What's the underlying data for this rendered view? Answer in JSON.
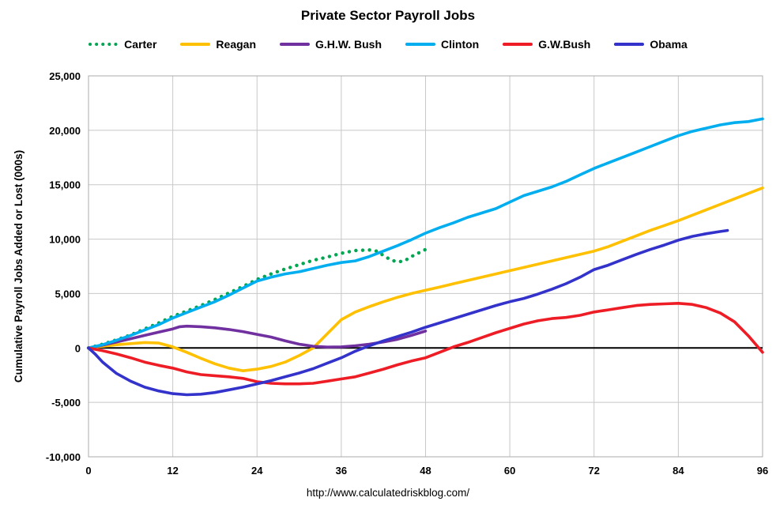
{
  "footer": {
    "url": "http://www.calculatedriskblog.com/"
  },
  "chart_data": {
    "type": "line",
    "title": "Private Sector Payroll Jobs",
    "xlabel": "",
    "ylabel": "Cumulative Payroll Jobs Added or  Lost (000s)",
    "xlim": [
      0,
      96
    ],
    "ylim": [
      -10000,
      25000
    ],
    "xticks": [
      0,
      12,
      24,
      36,
      48,
      60,
      72,
      84,
      96
    ],
    "yticks": [
      -10000,
      -5000,
      0,
      5000,
      10000,
      15000,
      20000,
      25000
    ],
    "grid": true,
    "legend_position": "top",
    "zero_line_color": "#000000",
    "grid_color": "#c8c8c8",
    "series": [
      {
        "name": "Carter",
        "color": "#00A651",
        "style": "dotted",
        "points": [
          [
            0,
            0
          ],
          [
            2,
            350
          ],
          [
            4,
            750
          ],
          [
            6,
            1200
          ],
          [
            8,
            1750
          ],
          [
            10,
            2300
          ],
          [
            12,
            2900
          ],
          [
            14,
            3400
          ],
          [
            16,
            3900
          ],
          [
            18,
            4450
          ],
          [
            20,
            5050
          ],
          [
            22,
            5650
          ],
          [
            24,
            6300
          ],
          [
            26,
            6800
          ],
          [
            28,
            7250
          ],
          [
            30,
            7650
          ],
          [
            32,
            8050
          ],
          [
            34,
            8350
          ],
          [
            36,
            8700
          ],
          [
            38,
            8950
          ],
          [
            40,
            9000
          ],
          [
            41,
            8900
          ],
          [
            43,
            8100
          ],
          [
            44,
            7900
          ],
          [
            45,
            8000
          ],
          [
            46,
            8400
          ],
          [
            48,
            9050
          ]
        ]
      },
      {
        "name": "Reagan",
        "color": "#FFC000",
        "style": "solid",
        "points": [
          [
            0,
            0
          ],
          [
            2,
            150
          ],
          [
            4,
            300
          ],
          [
            6,
            400
          ],
          [
            8,
            500
          ],
          [
            10,
            450
          ],
          [
            12,
            100
          ],
          [
            14,
            -400
          ],
          [
            16,
            -950
          ],
          [
            18,
            -1450
          ],
          [
            20,
            -1850
          ],
          [
            22,
            -2100
          ],
          [
            24,
            -1950
          ],
          [
            26,
            -1700
          ],
          [
            28,
            -1300
          ],
          [
            30,
            -700
          ],
          [
            32,
            0
          ],
          [
            34,
            1300
          ],
          [
            36,
            2600
          ],
          [
            38,
            3300
          ],
          [
            40,
            3800
          ],
          [
            42,
            4250
          ],
          [
            44,
            4650
          ],
          [
            46,
            5000
          ],
          [
            48,
            5300
          ],
          [
            50,
            5600
          ],
          [
            52,
            5900
          ],
          [
            54,
            6200
          ],
          [
            56,
            6500
          ],
          [
            58,
            6800
          ],
          [
            60,
            7100
          ],
          [
            62,
            7400
          ],
          [
            64,
            7700
          ],
          [
            66,
            8000
          ],
          [
            68,
            8300
          ],
          [
            70,
            8600
          ],
          [
            72,
            8900
          ],
          [
            74,
            9300
          ],
          [
            76,
            9800
          ],
          [
            78,
            10300
          ],
          [
            80,
            10800
          ],
          [
            82,
            11250
          ],
          [
            84,
            11700
          ],
          [
            86,
            12200
          ],
          [
            88,
            12700
          ],
          [
            90,
            13200
          ],
          [
            92,
            13700
          ],
          [
            94,
            14200
          ],
          [
            96,
            14700
          ]
        ]
      },
      {
        "name": "G.H.W. Bush",
        "color": "#7030A0",
        "style": "solid",
        "points": [
          [
            0,
            0
          ],
          [
            2,
            250
          ],
          [
            4,
            550
          ],
          [
            6,
            850
          ],
          [
            8,
            1150
          ],
          [
            10,
            1450
          ],
          [
            12,
            1750
          ],
          [
            13,
            1950
          ],
          [
            14,
            2000
          ],
          [
            16,
            1950
          ],
          [
            18,
            1850
          ],
          [
            20,
            1700
          ],
          [
            22,
            1500
          ],
          [
            24,
            1250
          ],
          [
            26,
            1000
          ],
          [
            28,
            650
          ],
          [
            30,
            350
          ],
          [
            32,
            150
          ],
          [
            34,
            80
          ],
          [
            36,
            100
          ],
          [
            38,
            200
          ],
          [
            40,
            350
          ],
          [
            42,
            550
          ],
          [
            44,
            800
          ],
          [
            46,
            1150
          ],
          [
            48,
            1550
          ]
        ]
      },
      {
        "name": "Clinton",
        "color": "#00AEEF",
        "style": "solid",
        "points": [
          [
            0,
            0
          ],
          [
            2,
            300
          ],
          [
            4,
            700
          ],
          [
            6,
            1150
          ],
          [
            8,
            1650
          ],
          [
            10,
            2150
          ],
          [
            12,
            2750
          ],
          [
            14,
            3250
          ],
          [
            16,
            3750
          ],
          [
            18,
            4250
          ],
          [
            20,
            4850
          ],
          [
            22,
            5500
          ],
          [
            24,
            6150
          ],
          [
            26,
            6500
          ],
          [
            28,
            6800
          ],
          [
            30,
            7000
          ],
          [
            32,
            7300
          ],
          [
            34,
            7600
          ],
          [
            36,
            7850
          ],
          [
            38,
            8000
          ],
          [
            40,
            8400
          ],
          [
            42,
            8900
          ],
          [
            44,
            9400
          ],
          [
            46,
            9950
          ],
          [
            48,
            10550
          ],
          [
            50,
            11050
          ],
          [
            52,
            11500
          ],
          [
            54,
            12000
          ],
          [
            56,
            12400
          ],
          [
            58,
            12800
          ],
          [
            60,
            13400
          ],
          [
            62,
            14000
          ],
          [
            64,
            14400
          ],
          [
            66,
            14800
          ],
          [
            68,
            15300
          ],
          [
            70,
            15900
          ],
          [
            72,
            16500
          ],
          [
            74,
            17000
          ],
          [
            76,
            17500
          ],
          [
            78,
            18000
          ],
          [
            80,
            18500
          ],
          [
            82,
            19000
          ],
          [
            84,
            19500
          ],
          [
            86,
            19900
          ],
          [
            88,
            20200
          ],
          [
            90,
            20500
          ],
          [
            92,
            20700
          ],
          [
            94,
            20800
          ],
          [
            96,
            21050
          ]
        ]
      },
      {
        "name": "G.W.Bush",
        "color": "#EE1C25",
        "style": "solid",
        "points": [
          [
            0,
            0
          ],
          [
            2,
            -250
          ],
          [
            4,
            -550
          ],
          [
            6,
            -900
          ],
          [
            8,
            -1300
          ],
          [
            10,
            -1600
          ],
          [
            12,
            -1850
          ],
          [
            14,
            -2200
          ],
          [
            16,
            -2450
          ],
          [
            18,
            -2550
          ],
          [
            20,
            -2650
          ],
          [
            22,
            -2800
          ],
          [
            24,
            -3100
          ],
          [
            26,
            -3250
          ],
          [
            28,
            -3300
          ],
          [
            30,
            -3300
          ],
          [
            32,
            -3250
          ],
          [
            34,
            -3050
          ],
          [
            36,
            -2850
          ],
          [
            38,
            -2650
          ],
          [
            40,
            -2300
          ],
          [
            42,
            -1950
          ],
          [
            44,
            -1550
          ],
          [
            46,
            -1200
          ],
          [
            48,
            -900
          ],
          [
            50,
            -400
          ],
          [
            52,
            100
          ],
          [
            54,
            500
          ],
          [
            56,
            950
          ],
          [
            58,
            1400
          ],
          [
            60,
            1800
          ],
          [
            62,
            2200
          ],
          [
            64,
            2500
          ],
          [
            66,
            2700
          ],
          [
            68,
            2800
          ],
          [
            70,
            3000
          ],
          [
            72,
            3300
          ],
          [
            74,
            3500
          ],
          [
            76,
            3700
          ],
          [
            78,
            3900
          ],
          [
            80,
            4000
          ],
          [
            82,
            4050
          ],
          [
            84,
            4100
          ],
          [
            86,
            4000
          ],
          [
            88,
            3700
          ],
          [
            90,
            3200
          ],
          [
            92,
            2400
          ],
          [
            94,
            1100
          ],
          [
            96,
            -400
          ]
        ]
      },
      {
        "name": "Obama",
        "color": "#3333CC",
        "style": "solid",
        "points": [
          [
            0,
            0
          ],
          [
            1,
            -600
          ],
          [
            2,
            -1300
          ],
          [
            4,
            -2350
          ],
          [
            6,
            -3050
          ],
          [
            8,
            -3600
          ],
          [
            10,
            -3950
          ],
          [
            12,
            -4200
          ],
          [
            14,
            -4300
          ],
          [
            16,
            -4250
          ],
          [
            18,
            -4100
          ],
          [
            20,
            -3850
          ],
          [
            22,
            -3600
          ],
          [
            24,
            -3300
          ],
          [
            26,
            -3000
          ],
          [
            28,
            -2650
          ],
          [
            30,
            -2300
          ],
          [
            32,
            -1900
          ],
          [
            34,
            -1400
          ],
          [
            36,
            -900
          ],
          [
            38,
            -300
          ],
          [
            40,
            200
          ],
          [
            42,
            650
          ],
          [
            44,
            1050
          ],
          [
            46,
            1450
          ],
          [
            48,
            1900
          ],
          [
            50,
            2300
          ],
          [
            52,
            2700
          ],
          [
            54,
            3100
          ],
          [
            56,
            3500
          ],
          [
            58,
            3900
          ],
          [
            60,
            4250
          ],
          [
            62,
            4550
          ],
          [
            64,
            4950
          ],
          [
            66,
            5400
          ],
          [
            68,
            5900
          ],
          [
            70,
            6500
          ],
          [
            72,
            7200
          ],
          [
            74,
            7600
          ],
          [
            76,
            8100
          ],
          [
            78,
            8600
          ],
          [
            80,
            9050
          ],
          [
            82,
            9450
          ],
          [
            84,
            9900
          ],
          [
            86,
            10250
          ],
          [
            88,
            10500
          ],
          [
            90,
            10700
          ],
          [
            91,
            10800
          ]
        ]
      }
    ]
  }
}
